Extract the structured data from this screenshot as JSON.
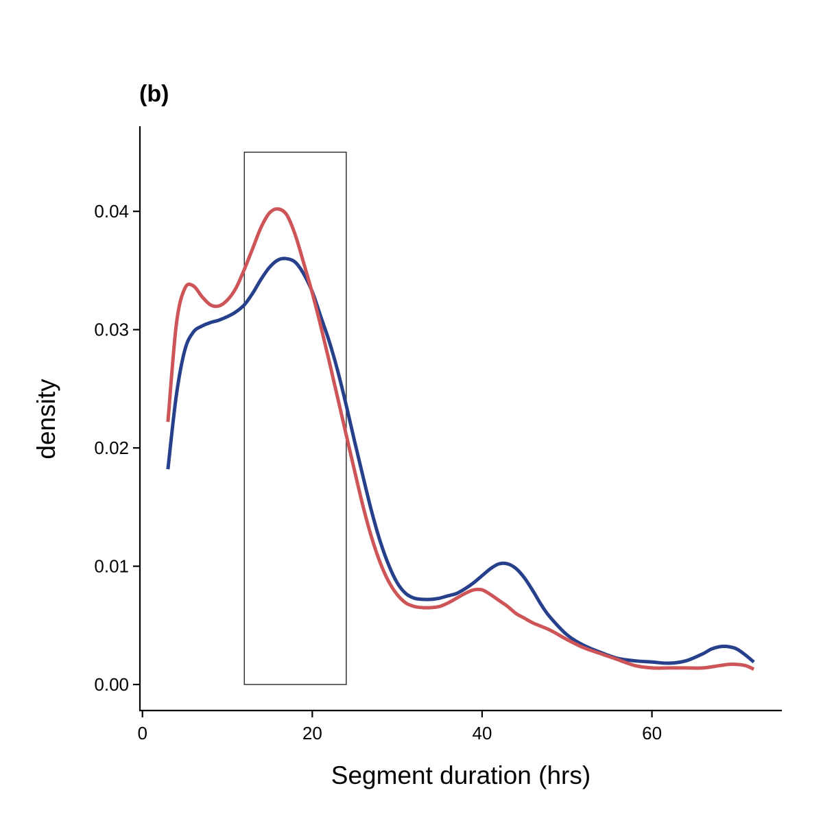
{
  "chart_data": {
    "type": "line",
    "title": "(b)",
    "xlabel": "Segment duration (hrs)",
    "ylabel": "density",
    "xlim": [
      -0.3,
      75.3
    ],
    "ylim": [
      -0.0022,
      0.0472
    ],
    "x_ticks": [
      0,
      20,
      40,
      60
    ],
    "x_tick_labels": [
      "0",
      "20",
      "40",
      "60"
    ],
    "y_ticks": [
      0.0,
      0.01,
      0.02,
      0.03,
      0.04
    ],
    "y_tick_labels": [
      "0.00",
      "0.01",
      "0.02",
      "0.03",
      "0.04"
    ],
    "grid": false,
    "highlight_box": {
      "x": [
        12,
        24
      ],
      "y": [
        0,
        0.045
      ]
    },
    "series": [
      {
        "color": "#26408B",
        "x": [
          3,
          4,
          5,
          6,
          7,
          8,
          9,
          10,
          11,
          12,
          13,
          14,
          15,
          16,
          17,
          18,
          19,
          20,
          21,
          22,
          23,
          24,
          25,
          26,
          27,
          28,
          29,
          30,
          31,
          32,
          33,
          34,
          35,
          36,
          37,
          38,
          39,
          40,
          41,
          42,
          43,
          44,
          45,
          46,
          47,
          48,
          50,
          52,
          54,
          56,
          58,
          60,
          62,
          64,
          66,
          67,
          68,
          69,
          70,
          71,
          72
        ],
        "y": [
          0.0182,
          0.0245,
          0.0283,
          0.0298,
          0.0303,
          0.0306,
          0.0308,
          0.0311,
          0.0315,
          0.0321,
          0.0331,
          0.0343,
          0.0353,
          0.0359,
          0.036,
          0.0357,
          0.0347,
          0.0332,
          0.0311,
          0.029,
          0.0265,
          0.0236,
          0.0205,
          0.0175,
          0.0146,
          0.0121,
          0.0101,
          0.0086,
          0.0077,
          0.0073,
          0.0072,
          0.0072,
          0.0073,
          0.0075,
          0.0077,
          0.0081,
          0.0086,
          0.0092,
          0.0098,
          0.0102,
          0.0102,
          0.0098,
          0.009,
          0.0079,
          0.0067,
          0.0057,
          0.0042,
          0.0033,
          0.0027,
          0.0022,
          0.002,
          0.0019,
          0.0018,
          0.002,
          0.0026,
          0.003,
          0.0032,
          0.0032,
          0.003,
          0.0025,
          0.0019
        ]
      },
      {
        "color": "#CD5557",
        "x": [
          3,
          4,
          5,
          6,
          7,
          8,
          9,
          10,
          11,
          12,
          13,
          14,
          15,
          16,
          17,
          18,
          19,
          20,
          21,
          22,
          23,
          24,
          25,
          26,
          27,
          28,
          29,
          30,
          31,
          32,
          33,
          34,
          35,
          36,
          37,
          38,
          39,
          40,
          41,
          42,
          43,
          44,
          45,
          46,
          48,
          50,
          52,
          54,
          56,
          58,
          60,
          62,
          64,
          66,
          68,
          69,
          70,
          71,
          72
        ],
        "y": [
          0.0222,
          0.0305,
          0.0335,
          0.0337,
          0.0328,
          0.0321,
          0.032,
          0.0325,
          0.0335,
          0.0351,
          0.0369,
          0.0387,
          0.0399,
          0.0402,
          0.0397,
          0.038,
          0.0356,
          0.0331,
          0.0303,
          0.0273,
          0.0242,
          0.0211,
          0.018,
          0.015,
          0.0124,
          0.0103,
          0.0087,
          0.0076,
          0.0069,
          0.0066,
          0.0065,
          0.0065,
          0.0066,
          0.0069,
          0.0073,
          0.0077,
          0.008,
          0.008,
          0.0076,
          0.0071,
          0.0066,
          0.006,
          0.0056,
          0.0052,
          0.0046,
          0.0038,
          0.0031,
          0.0026,
          0.0021,
          0.0016,
          0.0014,
          0.0014,
          0.0014,
          0.0014,
          0.0016,
          0.0017,
          0.0017,
          0.0016,
          0.0013
        ]
      }
    ]
  }
}
